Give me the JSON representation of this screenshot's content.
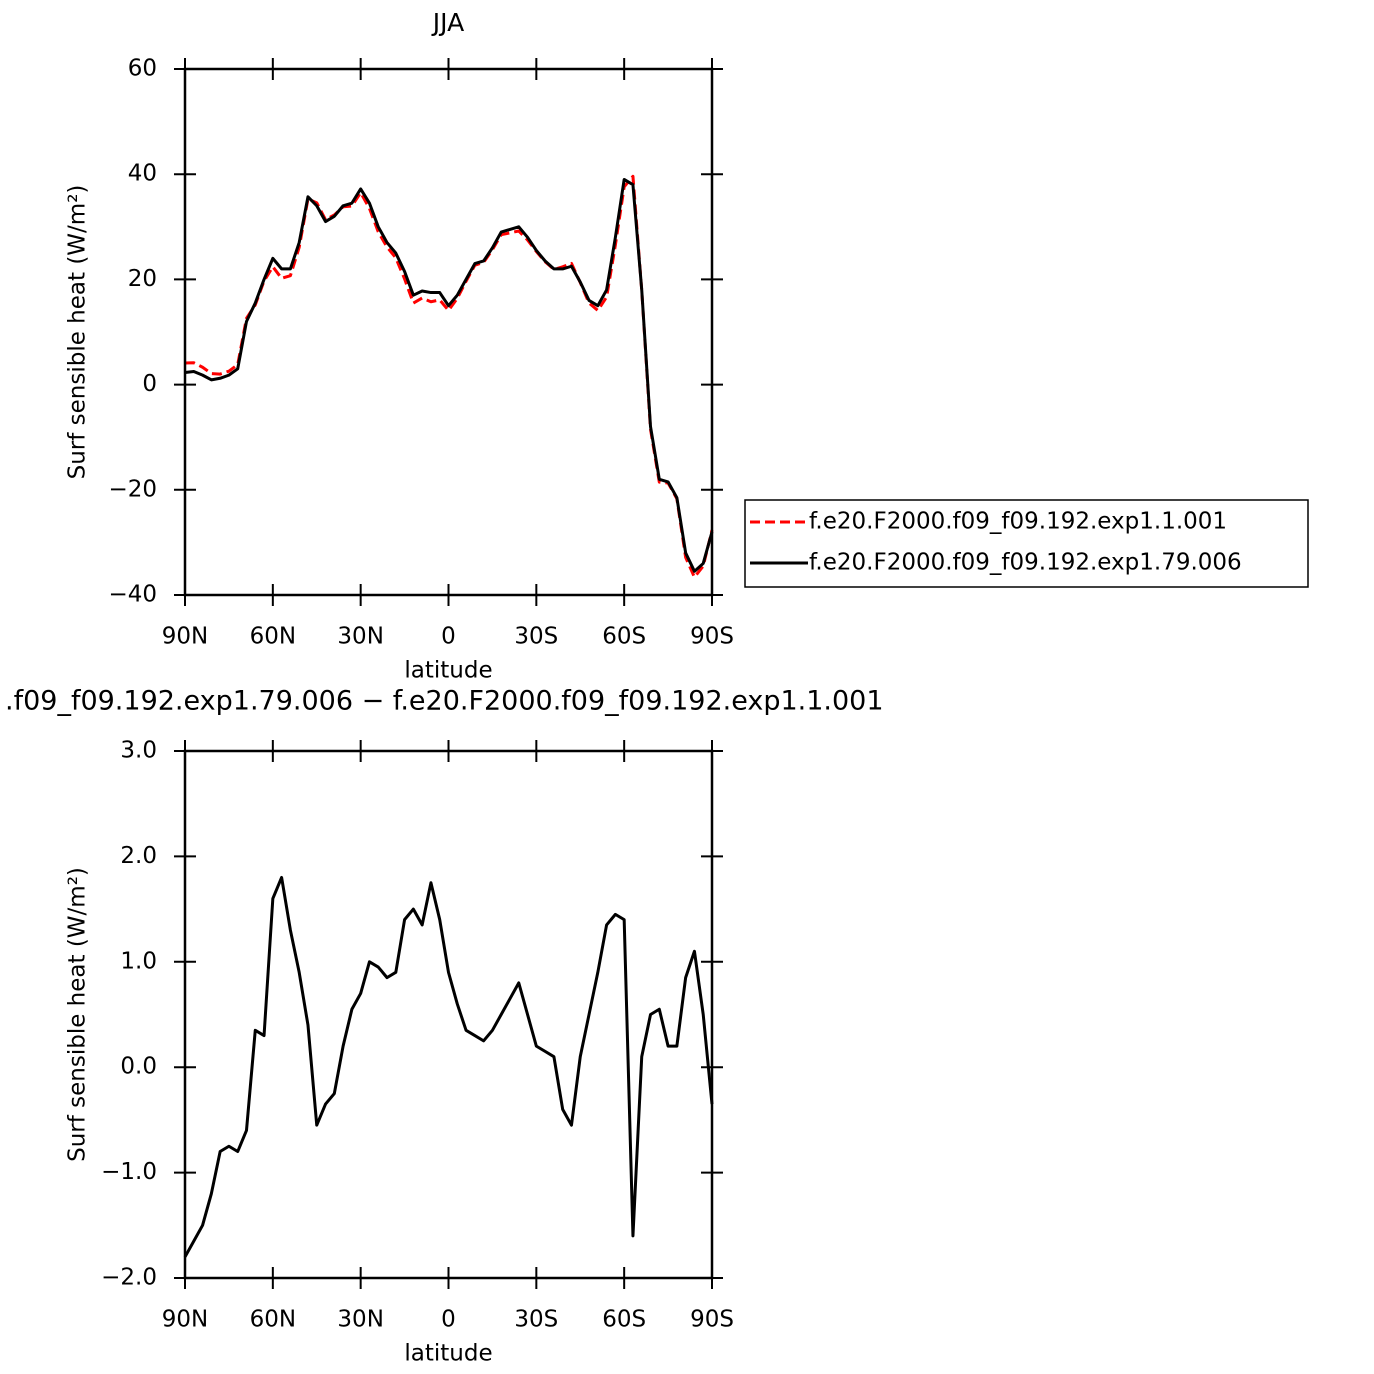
{
  "chart_data": [
    {
      "type": "line",
      "title": "JJA",
      "xlabel": "latitude",
      "ylabel": "Surf sensible heat (W/m²)",
      "x": [
        90,
        87,
        84,
        81,
        78,
        75,
        72,
        69,
        66,
        63,
        60,
        57,
        54,
        51,
        48,
        45,
        42,
        39,
        36,
        33,
        30,
        27,
        24,
        21,
        18,
        15,
        12,
        9,
        6,
        3,
        0,
        -3,
        -6,
        -9,
        -12,
        -15,
        -18,
        -21,
        -24,
        -27,
        -30,
        -33,
        -36,
        -39,
        -42,
        -45,
        -48,
        -51,
        -54,
        -57,
        -60,
        -63,
        -66,
        -69,
        -72,
        -75,
        -78,
        -81,
        -84,
        -87,
        -90
      ],
      "series": [
        {
          "name": "f.e20.F2000.f09_f09.192.exp1.1.001",
          "color": "#ff0000",
          "line_style": "dashed",
          "values": [
            4.1,
            4.15,
            3.3,
            2.1,
            2.0,
            2.55,
            3.8,
            12.6,
            15.15,
            19.7,
            22.4,
            20.2,
            20.7,
            26.1,
            35.3,
            34.55,
            31.35,
            32.25,
            33.8,
            33.95,
            36.5,
            33.5,
            29.05,
            26.15,
            24.1,
            20.1,
            15.5,
            16.45,
            15.75,
            16.1,
            14.1,
            16.4,
            19.65,
            22.7,
            23.25,
            25.65,
            28.5,
            28.85,
            29.2,
            27.5,
            25.3,
            23.35,
            21.9,
            22.4,
            23.05,
            19.4,
            15.5,
            14.1,
            16.65,
            26.55,
            37.6,
            39.6,
            17.9,
            -8.5,
            -18.55,
            -18.7,
            -21.7,
            -32.85,
            -36.6,
            -34.5,
            -27.65
          ]
        },
        {
          "name": "f.e20.F2000.f09_f09.192.exp1.79.006",
          "color": "#000000",
          "line_style": "solid",
          "values": [
            2.3,
            2.5,
            1.8,
            0.9,
            1.2,
            1.8,
            3.0,
            12.0,
            15.5,
            20.0,
            24.0,
            22.0,
            22.0,
            27.0,
            35.7,
            34.0,
            31.0,
            32.0,
            34.0,
            34.5,
            37.2,
            34.5,
            30.0,
            27.0,
            25.0,
            21.5,
            17.0,
            17.8,
            17.5,
            17.5,
            15.0,
            17.0,
            20.0,
            23.0,
            23.5,
            26.0,
            29.0,
            29.5,
            30.0,
            28.0,
            25.5,
            23.5,
            22.0,
            22.0,
            22.5,
            19.5,
            16.0,
            15.0,
            18.0,
            28.0,
            39.0,
            38.0,
            18.0,
            -8.0,
            -18.0,
            -18.5,
            -21.5,
            -32.0,
            -35.5,
            -34.0,
            -28.0
          ]
        }
      ],
      "xlim": [
        90,
        -90
      ],
      "xticks": [
        {
          "value": 90,
          "label": "90N"
        },
        {
          "value": 60,
          "label": "60N"
        },
        {
          "value": 30,
          "label": "30N"
        },
        0,
        {
          "value": -30,
          "label": "30S"
        },
        {
          "value": -60,
          "label": "60S"
        },
        {
          "value": -90,
          "label": "90S"
        }
      ],
      "ylim": [
        -40,
        60
      ],
      "yticks": [
        {
          "value": -40,
          "label": "−40"
        },
        {
          "value": -20,
          "label": "−20"
        },
        0,
        20,
        40,
        60
      ],
      "legend": "right"
    },
    {
      "type": "line",
      "title": ".f09_f09.192.exp1.79.006 − f.e20.F2000.f09_f09.192.exp1.1.001",
      "xlabel": "latitude",
      "ylabel": "Surf sensible heat (W/m²)",
      "x": [
        90,
        87,
        84,
        81,
        78,
        75,
        72,
        69,
        66,
        63,
        60,
        57,
        54,
        51,
        48,
        45,
        42,
        39,
        36,
        33,
        30,
        27,
        24,
        21,
        18,
        15,
        12,
        9,
        6,
        3,
        0,
        -3,
        -6,
        -9,
        -12,
        -15,
        -18,
        -21,
        -24,
        -27,
        -30,
        -33,
        -36,
        -39,
        -42,
        -45,
        -48,
        -51,
        -54,
        -57,
        -60,
        -63,
        -66,
        -69,
        -72,
        -75,
        -78,
        -81,
        -84,
        -87,
        -90
      ],
      "series": [
        {
          "color": "#000000",
          "line_style": "solid",
          "values": [
            -1.8,
            -1.65,
            -1.5,
            -1.2,
            -0.8,
            -0.75,
            -0.8,
            -0.6,
            0.35,
            0.3,
            1.6,
            1.8,
            1.3,
            0.9,
            0.4,
            -0.55,
            -0.35,
            -0.25,
            0.2,
            0.55,
            0.7,
            1.0,
            0.95,
            0.85,
            0.9,
            1.4,
            1.5,
            1.35,
            1.75,
            1.4,
            0.9,
            0.6,
            0.35,
            0.3,
            0.25,
            0.35,
            0.5,
            0.65,
            0.8,
            0.5,
            0.2,
            0.15,
            0.1,
            -0.4,
            -0.55,
            0.1,
            0.5,
            0.9,
            1.35,
            1.45,
            1.4,
            -1.6,
            0.1,
            0.5,
            0.55,
            0.2,
            0.2,
            0.85,
            1.1,
            0.5,
            -0.35
          ]
        }
      ],
      "xlim": [
        90,
        -90
      ],
      "xticks": [
        {
          "value": 90,
          "label": "90N"
        },
        {
          "value": 60,
          "label": "60N"
        },
        {
          "value": 30,
          "label": "30N"
        },
        0,
        {
          "value": -30,
          "label": "30S"
        },
        {
          "value": -60,
          "label": "60S"
        },
        {
          "value": -90,
          "label": "90S"
        }
      ],
      "ylim": [
        -2,
        3
      ],
      "yticks": [
        {
          "value": -2,
          "label": "−2.0"
        },
        {
          "value": -1,
          "label": "−1.0"
        },
        {
          "value": 0,
          "label": "0.0"
        },
        {
          "value": 1,
          "label": "1.0"
        },
        {
          "value": 2,
          "label": "2.0"
        },
        {
          "value": 3,
          "label": "3.0"
        }
      ]
    }
  ]
}
